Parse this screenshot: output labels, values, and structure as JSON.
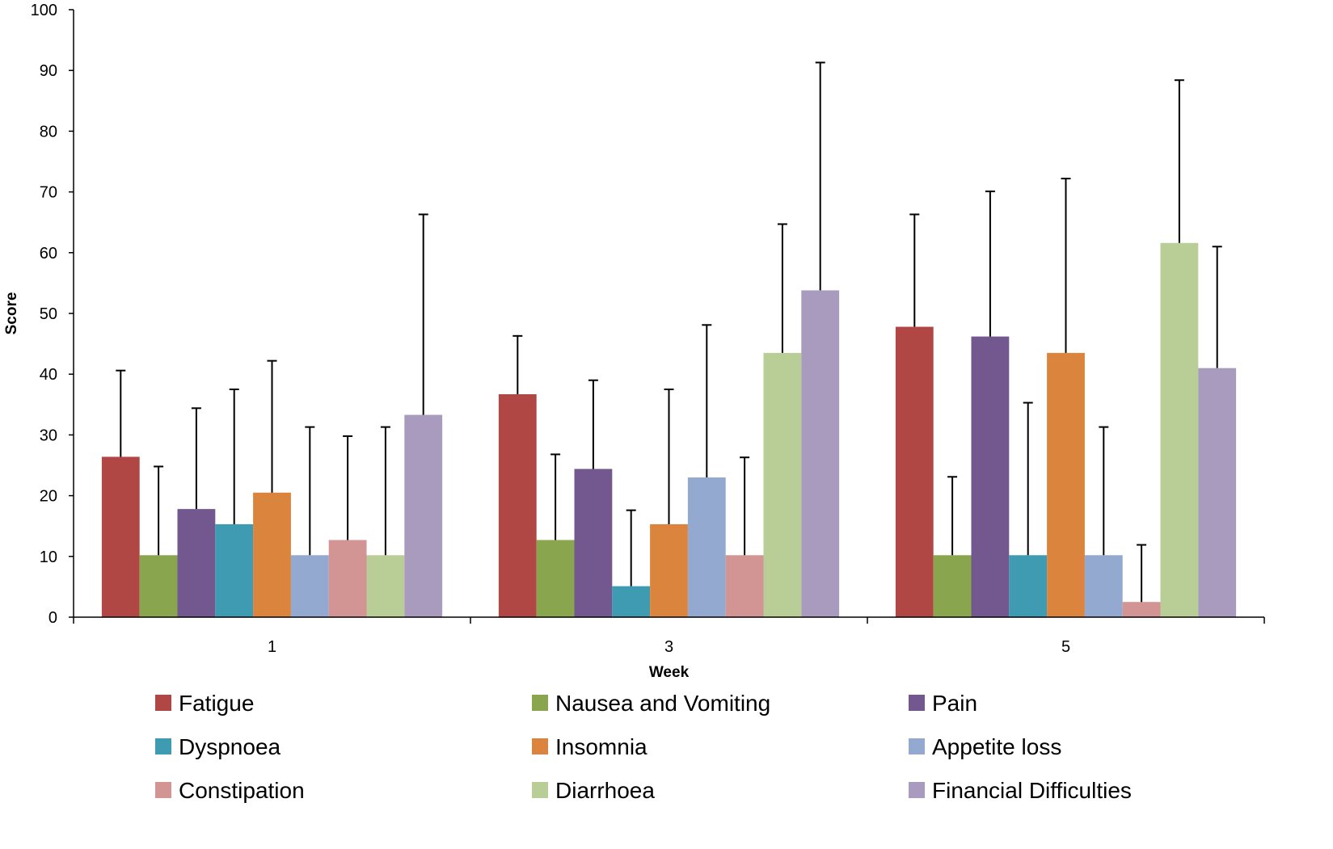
{
  "chart_data": {
    "type": "bar",
    "title": "",
    "xlabel": "Week",
    "ylabel": "Score",
    "ylim": [
      0,
      100
    ],
    "yticks": [
      0,
      10,
      20,
      30,
      40,
      50,
      60,
      70,
      80,
      90,
      100
    ],
    "categories": [
      "1",
      "3",
      "5"
    ],
    "grid": false,
    "legend_position": "bottom",
    "error_bars": "upper",
    "series": [
      {
        "name": "Fatigue",
        "color": "#b04745",
        "values": [
          26.4,
          36.7,
          47.8
        ],
        "error": [
          14.2,
          9.6,
          18.5
        ]
      },
      {
        "name": "Nausea and Vomiting",
        "color": "#89a54e",
        "values": [
          10.2,
          12.7,
          10.2
        ],
        "error": [
          14.6,
          14.1,
          12.9
        ]
      },
      {
        "name": "Pain",
        "color": "#73588f",
        "values": [
          17.8,
          24.4,
          46.2
        ],
        "error": [
          16.6,
          14.6,
          23.9
        ]
      },
      {
        "name": "Dyspnoea",
        "color": "#3e9bb2",
        "values": [
          15.3,
          5.1,
          10.2
        ],
        "error": [
          22.2,
          12.5,
          25.1
        ]
      },
      {
        "name": "Insomnia",
        "color": "#db843d",
        "values": [
          20.5,
          15.3,
          43.5
        ],
        "error": [
          21.7,
          22.2,
          28.7
        ]
      },
      {
        "name": "Appetite loss",
        "color": "#93a9d0",
        "values": [
          10.2,
          23.0,
          10.2
        ],
        "error": [
          21.1,
          25.1,
          21.1
        ]
      },
      {
        "name": "Constipation",
        "color": "#d29593",
        "values": [
          12.7,
          10.2,
          2.5
        ],
        "error": [
          17.1,
          16.1,
          9.4
        ]
      },
      {
        "name": "Diarrhoea",
        "color": "#b9cd96",
        "values": [
          10.2,
          43.5,
          61.6
        ],
        "error": [
          21.1,
          21.2,
          26.8
        ]
      },
      {
        "name": "Financial Difficulties",
        "color": "#a99bbd",
        "values": [
          33.3,
          53.8,
          41.0
        ],
        "error": [
          33.0,
          37.5,
          20.0
        ]
      }
    ]
  }
}
